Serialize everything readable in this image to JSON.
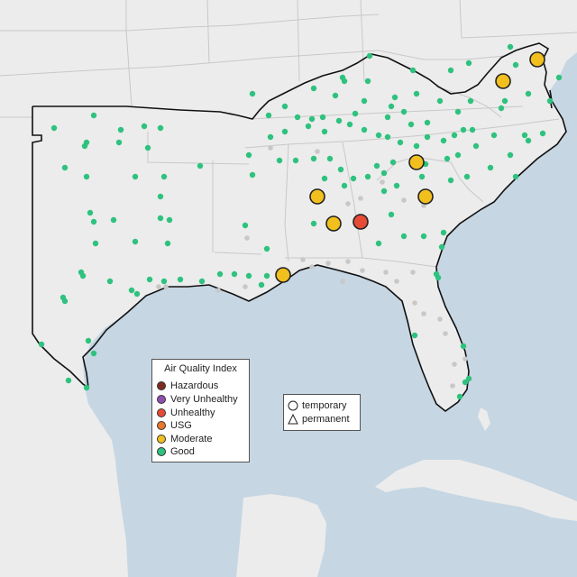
{
  "legend": {
    "title": "Air Quality Index",
    "categories": [
      {
        "label": "Hazardous",
        "color": "#7e2b22"
      },
      {
        "label": "Very Unhealthy",
        "color": "#8e4fb0"
      },
      {
        "label": "Unhealthy",
        "color": "#e64b35"
      },
      {
        "label": "USG",
        "color": "#e8762c"
      },
      {
        "label": "Moderate",
        "color": "#f2c01e"
      },
      {
        "label": "Good",
        "color": "#2ec27e"
      }
    ]
  },
  "shape_legend": {
    "items": [
      {
        "label": "temporary",
        "shape": "circle"
      },
      {
        "label": "permanent",
        "shape": "triangle"
      }
    ]
  },
  "colors": {
    "water": "#c6d6e3",
    "land": "#ececec",
    "border": "#c8c8c8",
    "coast": "#111111",
    "no_data": "#c8c8c8"
  }
}
